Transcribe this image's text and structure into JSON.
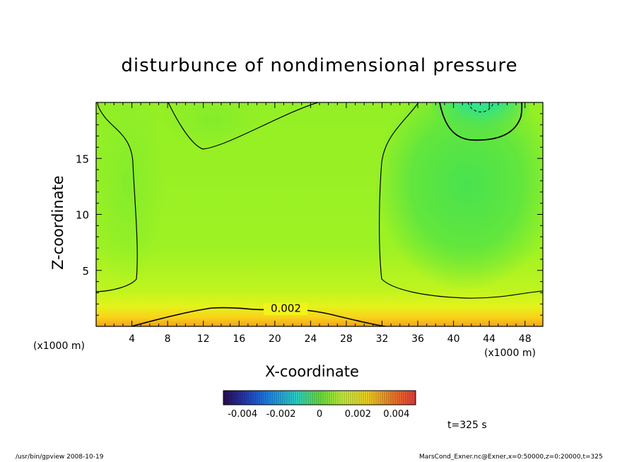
{
  "chart_data": {
    "type": "heatmap",
    "title": "disturbunce of nondimensional pressure",
    "xlabel": "X-coordinate",
    "ylabel": "Z-coordinate",
    "x_unit": "(x1000 m)",
    "xlim": [
      0,
      50
    ],
    "ylim": [
      0,
      20
    ],
    "x_ticks": [
      4,
      8,
      12,
      16,
      20,
      24,
      28,
      32,
      36,
      40,
      44,
      48
    ],
    "y_ticks": [
      5,
      10,
      15
    ],
    "contour_labels": [
      {
        "level": "0.002",
        "x": 21,
        "z": 1.6
      }
    ],
    "colorbar": {
      "range": [
        -0.005,
        0.005
      ],
      "ticks": [
        "-0.004",
        "-0.002",
        "0",
        "0.002",
        "0.004"
      ]
    },
    "field_notes": "high near bottom center (~0.003), lowest near top right x~43 z~19",
    "time_label": "t=325 s"
  },
  "footer": {
    "left": "/usr/bin/gpview  2008-10-19",
    "right": "MarsCond_Exner.nc@Exner,x=0:50000,z=0:20000,t=325"
  }
}
